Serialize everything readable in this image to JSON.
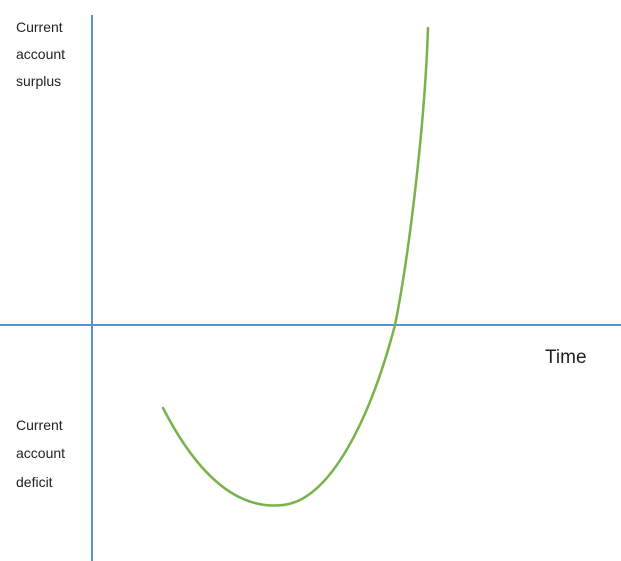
{
  "labels": {
    "surplus": [
      "Current",
      "account",
      "surplus"
    ],
    "deficit": [
      "Current",
      "account",
      "deficit"
    ],
    "x_axis": "Time"
  }
}
